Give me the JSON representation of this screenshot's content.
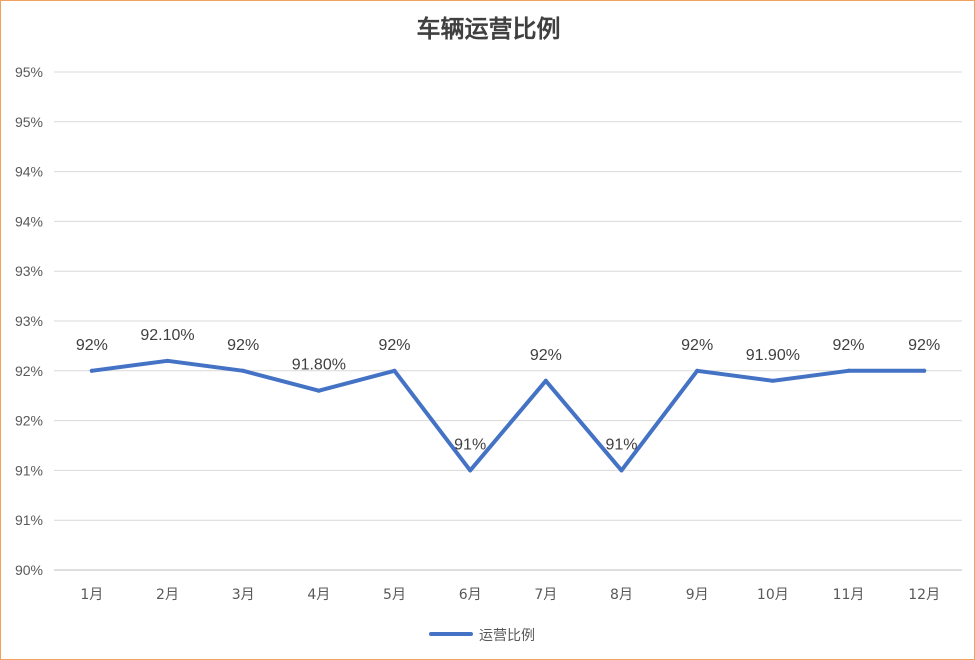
{
  "chart_data": {
    "type": "line",
    "title": "车辆运营比例",
    "xlabel": "",
    "ylabel": "",
    "ylim": [
      90,
      95
    ],
    "y_ticks": [
      90,
      90.5,
      91,
      91.5,
      92,
      92.5,
      93,
      93.5,
      94,
      94.5,
      95
    ],
    "y_tick_labels": [
      "90%",
      "91%",
      "91%",
      "92%",
      "92%",
      "93%",
      "93%",
      "94%",
      "94%",
      "95%",
      "95%"
    ],
    "categories": [
      "1月",
      "2月",
      "3月",
      "4月",
      "5月",
      "6月",
      "7月",
      "8月",
      "9月",
      "10月",
      "11月",
      "12月"
    ],
    "series": [
      {
        "name": "运营比例",
        "color": "#4472c4",
        "values": [
          92.0,
          92.1,
          92.0,
          91.8,
          92.0,
          91.0,
          91.9,
          91.0,
          92.0,
          91.9,
          92.0,
          92.0
        ],
        "data_labels": [
          "92%",
          "92.10%",
          "92%",
          "91.80%",
          "92%",
          "91%",
          "92%",
          "91%",
          "92%",
          "91.90%",
          "92%",
          "92%"
        ]
      }
    ],
    "grid": true,
    "legend_position": "bottom"
  }
}
